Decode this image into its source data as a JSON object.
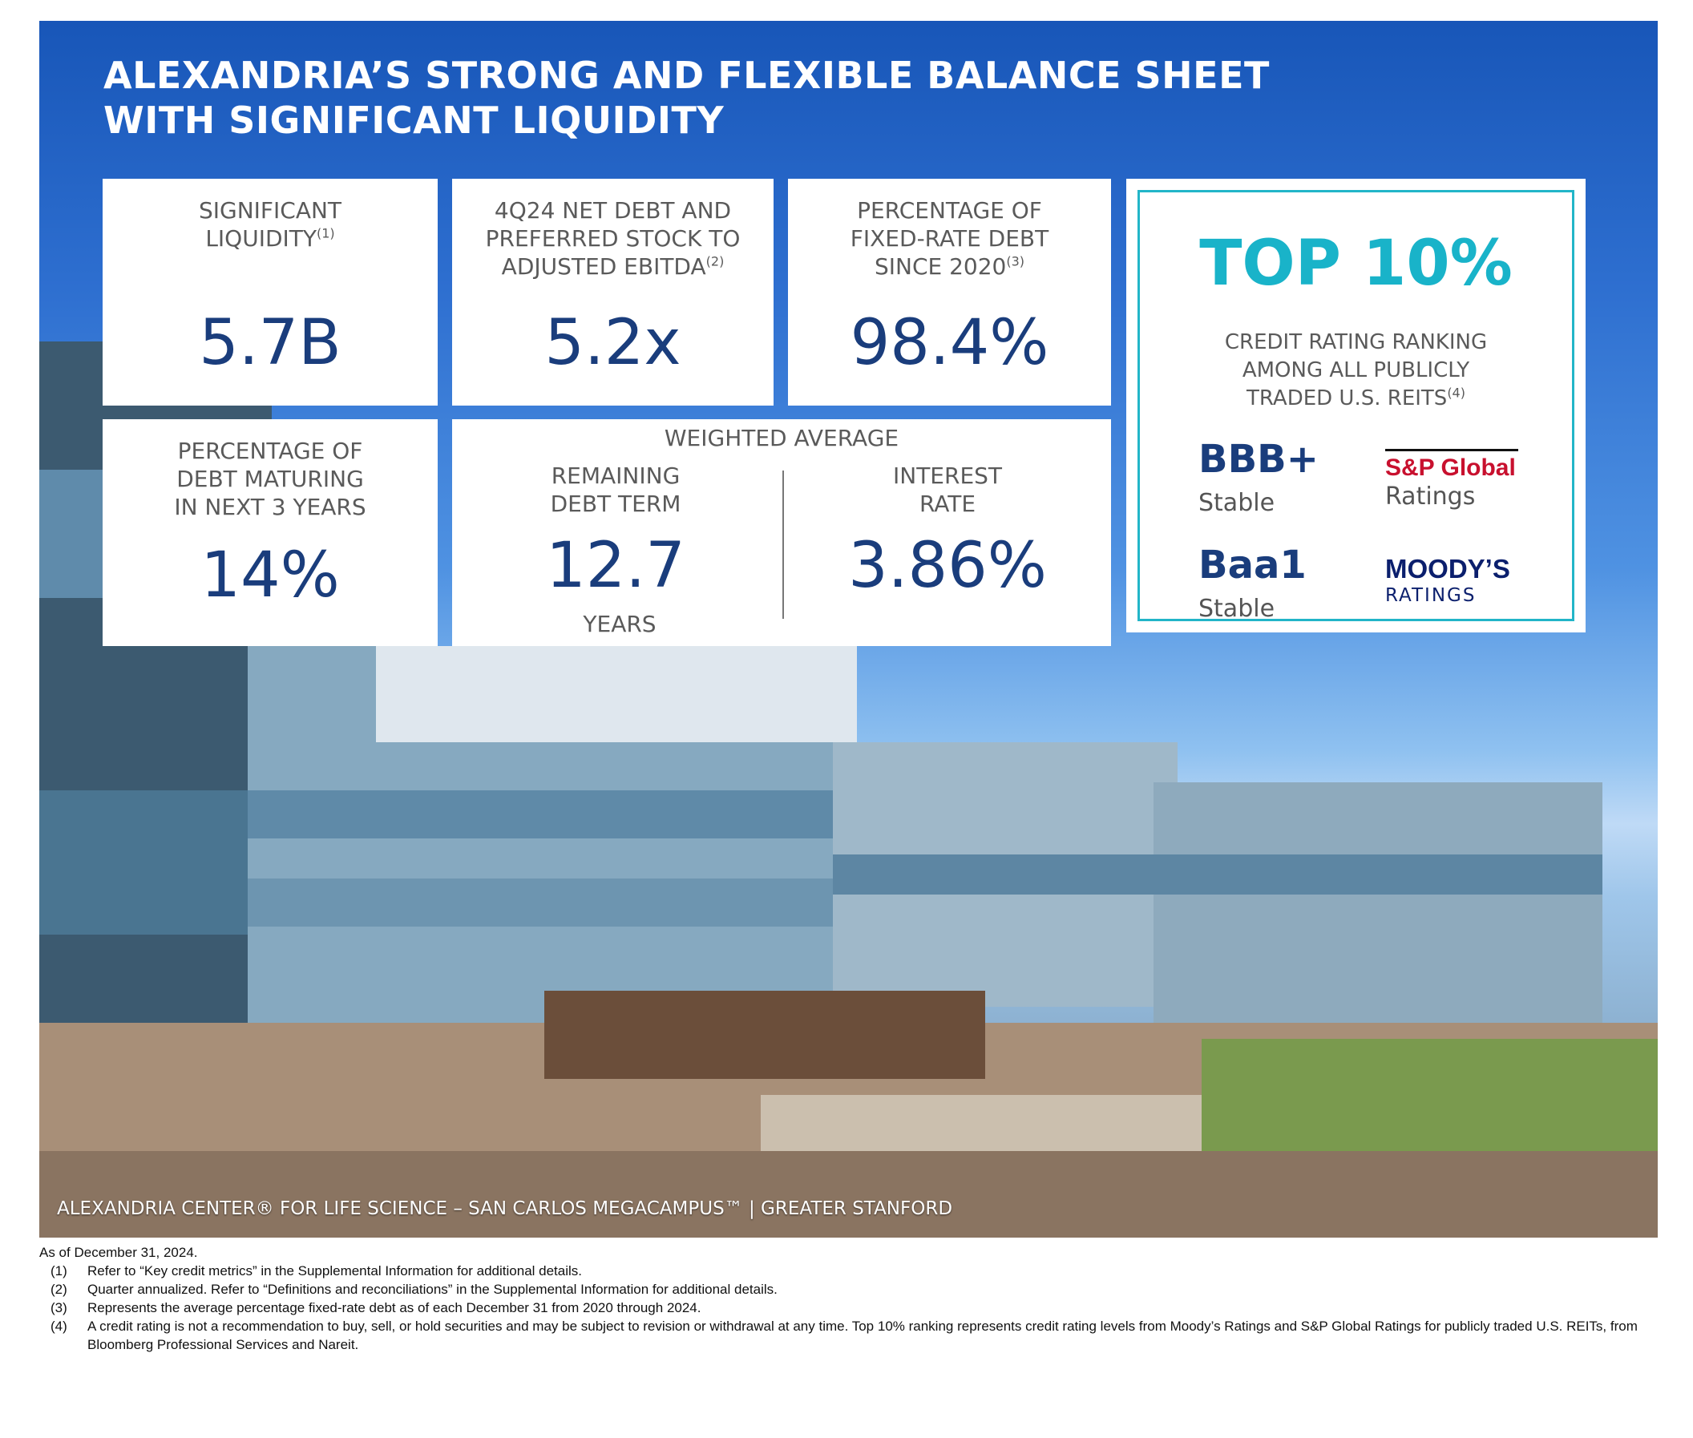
{
  "title": {
    "line1": "ALEXANDRIA’S STRONG AND FLEXIBLE BALANCE SHEET",
    "line2": "WITH SIGNIFICANT LIQUIDITY"
  },
  "metrics": {
    "liquidity": {
      "label1": "SIGNIFICANT",
      "label2": "LIQUIDITY",
      "note": "(1)",
      "value": "5.7B"
    },
    "net_debt": {
      "label1": "4Q24 NET DEBT AND",
      "label2": "PREFERRED STOCK TO",
      "label3": "ADJUSTED EBITDA",
      "note": "(2)",
      "value": "5.2x"
    },
    "fixed_rate": {
      "label1": "PERCENTAGE OF",
      "label2": "FIXED-RATE DEBT",
      "label3": "SINCE 2020",
      "note": "(3)",
      "value": "98.4%"
    },
    "maturing": {
      "label1": "PERCENTAGE OF",
      "label2": "DEBT MATURING",
      "label3": "IN NEXT 3 YEARS",
      "value": "14%"
    },
    "weighted": {
      "header": "WEIGHTED AVERAGE",
      "term_label1": "REMAINING",
      "term_label2": "DEBT TERM",
      "term_value": "12.7",
      "term_unit": "YEARS",
      "rate_label1": "INTEREST",
      "rate_label2": "RATE",
      "rate_value": "3.86%"
    }
  },
  "rating": {
    "headline": "TOP 10%",
    "label1": "CREDIT RATING RANKING",
    "label2": "AMONG ALL PUBLICLY",
    "label3": "TRADED U.S. REITS",
    "note": "(4)",
    "sp_grade": "BBB+",
    "sp_outlook": "Stable",
    "sp_agency": "S&P Global",
    "sp_agency_sub": "Ratings",
    "moodys_grade": "Baa1",
    "moodys_outlook": "Stable",
    "moodys_agency": "MOODY’S",
    "moodys_agency_sub": "RATINGS",
    "accent_color": "#19b3c9"
  },
  "caption": "ALEXANDRIA CENTER® FOR LIFE SCIENCE – SAN CARLOS MEGACAMPUS™ | GREATER STANFORD",
  "footnotes": {
    "asof": "As of December 31, 2024.",
    "items": [
      {
        "num": "(1)",
        "text": "Refer to “Key credit metrics” in the Supplemental Information for additional details."
      },
      {
        "num": "(2)",
        "text": "Quarter annualized. Refer to “Definitions and reconciliations” in the Supplemental Information for additional details."
      },
      {
        "num": "(3)",
        "text": "Represents the average percentage fixed-rate debt as of each December 31 from 2020 through 2024."
      },
      {
        "num": "(4)",
        "text": "A credit rating is not a recommendation to buy, sell, or hold securities and may be subject to revision or withdrawal at any time. Top 10% ranking represents credit rating levels from Moody’s Ratings and S&P Global Ratings for publicly traded U.S. REITs, from Bloomberg Professional Services and Nareit."
      }
    ]
  },
  "colors": {
    "navy": "#1a3d7c",
    "blue_bg": "#1856b8",
    "teal": "#19b3c9",
    "sp_red": "#c8102e",
    "moodys_navy": "#0b1f6d"
  }
}
